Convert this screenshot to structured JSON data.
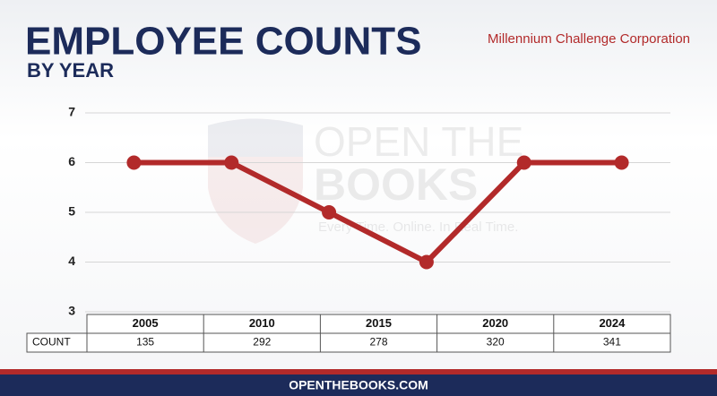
{
  "chart_data": {
    "type": "line",
    "title": "EMPLOYEE COUNTS",
    "subtitle": "BY YEAR",
    "organization": "Millennium Challenge Corporation",
    "categories": [
      null,
      null,
      null,
      null,
      null,
      null
    ],
    "values": [
      6,
      6,
      5,
      4,
      6,
      6
    ],
    "color": "#b22a2a",
    "ylim": [
      3,
      7
    ],
    "yticks": [
      3,
      4,
      5,
      6,
      7
    ],
    "grid": true,
    "table": {
      "columns": [
        "2005",
        "2010",
        "2015",
        "2020",
        "2024"
      ],
      "row_label": "COUNT",
      "values": [
        135,
        292,
        278,
        320,
        341
      ]
    },
    "watermark": [
      "OPEN THE",
      "BOOKS",
      "Every Time. Online. In Real Time."
    ],
    "footer": "OPENTHEBOOKS.COM"
  }
}
